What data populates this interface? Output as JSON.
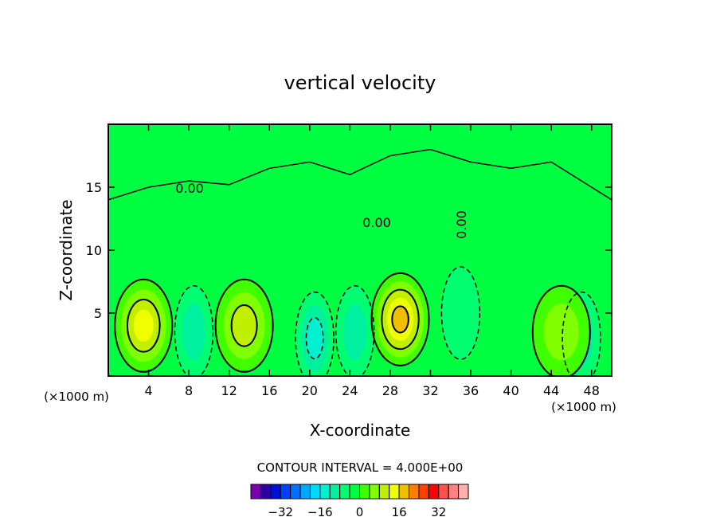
{
  "chart_data": {
    "type": "heatmap",
    "title": "vertical velocity",
    "xlabel": "X-coordinate",
    "ylabel": "Z-coordinate",
    "x_unit": "(×1000 m)",
    "z_unit": "(×1000 m)",
    "xlim": [
      0,
      50
    ],
    "ylim": [
      0,
      20
    ],
    "xticks": [
      "4",
      "8",
      "12",
      "16",
      "20",
      "24",
      "28",
      "32",
      "36",
      "40",
      "44",
      "48"
    ],
    "yticks": [
      "5",
      "10",
      "15"
    ],
    "contour_labels": [
      "0.00",
      "0.00",
      "0.00"
    ],
    "contour_interval_label": "CONTOUR INTERVAL = 4.000E+00",
    "colorbar": {
      "levels": [
        -36,
        -32,
        -28,
        -24,
        -20,
        -16,
        -12,
        -8,
        -4,
        0,
        4,
        8,
        12,
        16,
        20,
        24,
        28,
        32,
        36
      ],
      "tick_labels": [
        "−32",
        "−16",
        "0",
        "16",
        "32"
      ],
      "colors": [
        "#7a00b0",
        "#2a00a0",
        "#0010d0",
        "#0040ff",
        "#0070ff",
        "#00a8ff",
        "#00d8ff",
        "#00f0d0",
        "#00f0a0",
        "#00ff70",
        "#00ff40",
        "#40ff00",
        "#80ff00",
        "#c0f000",
        "#f0ff00",
        "#f0c000",
        "#ff8000",
        "#ff4000",
        "#ff0000",
        "#ff5050",
        "#ff8080",
        "#ffb0b0"
      ]
    },
    "cells": [
      {
        "x": 3.5,
        "z": 4.0,
        "value": 14,
        "note_color": "#f0ff00"
      },
      {
        "x": 13.5,
        "z": 4.0,
        "value": 12,
        "note_color": "#c0f000"
      },
      {
        "x": 29.0,
        "z": 4.5,
        "value": 18,
        "note_color": "#f0c000"
      },
      {
        "x": 8.5,
        "z": 3.5,
        "value": -8,
        "note_color": "#00f0d0"
      },
      {
        "x": 20.5,
        "z": 3.0,
        "value": -10,
        "note_color": "#00f0d0"
      },
      {
        "x": 24.5,
        "z": 3.5,
        "value": -8,
        "note_color": "#00f0d0"
      },
      {
        "x": 35.0,
        "z": 5.0,
        "value": -4,
        "note_color": "#00f0a0"
      },
      {
        "x": 47.0,
        "z": 3.0,
        "value": -8,
        "note_color": "#00f0d0"
      },
      {
        "x": 45.0,
        "z": 3.5,
        "value": 8,
        "note_color": "#80ff00"
      }
    ],
    "background_value": 0,
    "background_color": "#00ff40",
    "grid": false
  }
}
